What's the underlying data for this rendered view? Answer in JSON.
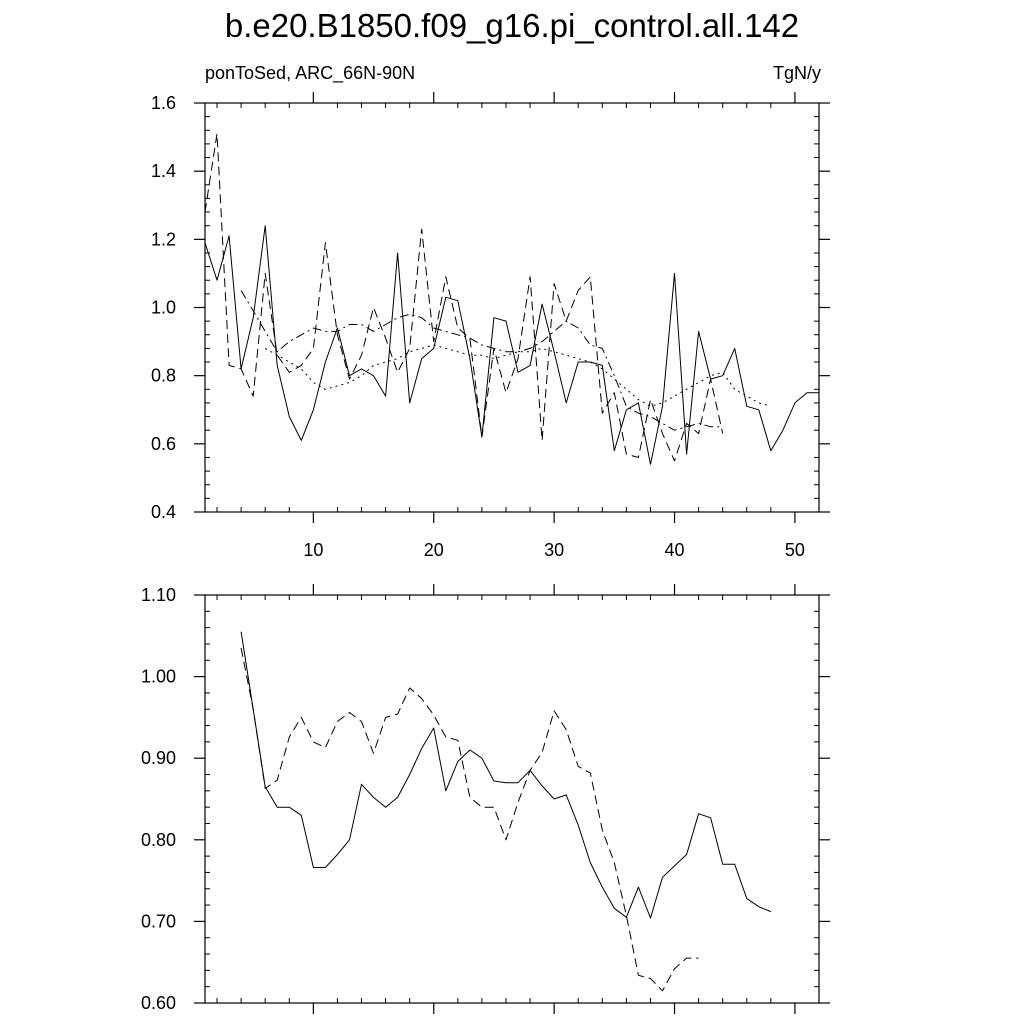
{
  "page": {
    "title": "b.e20.B1850.f09_g16.pi_control.all.142",
    "left_label": "ponToSed, ARC_66N-90N",
    "right_label": "TgN/y"
  },
  "chart_data": [
    {
      "type": "line",
      "title": "",
      "xlabel": "",
      "ylabel": "",
      "xlim": [
        1,
        52
      ],
      "ylim": [
        0.4,
        1.6
      ],
      "xticks": [
        10,
        20,
        30,
        40,
        50
      ],
      "yticks": [
        0.4,
        0.6,
        0.8,
        1.0,
        1.2,
        1.4,
        1.6
      ],
      "ytick_labels": [
        "0.4",
        "0.6",
        "0.8",
        "1.0",
        "1.2",
        "1.4",
        "1.6"
      ],
      "show_xtick_labels": true,
      "grid": false,
      "series": [
        {
          "style": "solid",
          "x": [
            1,
            2,
            3,
            4,
            5,
            6,
            7,
            8,
            9,
            10,
            11,
            12,
            13,
            14,
            15,
            16,
            17,
            18,
            19,
            20,
            21,
            22,
            23,
            24,
            25,
            26,
            27,
            28,
            29,
            30,
            31,
            32,
            33,
            34,
            35,
            36,
            37,
            38,
            39,
            40,
            41,
            42,
            43,
            44,
            45,
            46,
            47,
            48,
            49,
            50,
            51,
            52
          ],
          "y": [
            1.19,
            1.08,
            1.21,
            0.82,
            0.97,
            1.24,
            0.83,
            0.68,
            0.61,
            0.7,
            0.84,
            0.94,
            0.8,
            0.82,
            0.8,
            0.74,
            1.16,
            0.72,
            0.85,
            0.88,
            1.03,
            1.02,
            0.85,
            0.62,
            0.97,
            0.96,
            0.81,
            0.83,
            1.01,
            0.87,
            0.72,
            0.84,
            0.84,
            0.83,
            0.58,
            0.7,
            0.72,
            0.54,
            0.71,
            1.1,
            0.57,
            0.93,
            0.79,
            0.8,
            0.88,
            0.71,
            0.7,
            0.58,
            0.64,
            0.72,
            0.75,
            0.75
          ]
        },
        {
          "style": "dash",
          "x": [
            1,
            2,
            3,
            4,
            5,
            6,
            7,
            8,
            9,
            10,
            11,
            12,
            13,
            14,
            15,
            16,
            17,
            18,
            19,
            20,
            21,
            22,
            23,
            24,
            25,
            26,
            27,
            28,
            29,
            30,
            31,
            32,
            33,
            34,
            35,
            36,
            37,
            38,
            39,
            40,
            41,
            42,
            43,
            44
          ],
          "y": [
            1.28,
            1.51,
            0.83,
            0.82,
            0.74,
            1.1,
            0.86,
            0.81,
            0.83,
            0.88,
            1.19,
            0.92,
            0.79,
            0.86,
            1.0,
            0.91,
            0.81,
            0.88,
            1.23,
            0.9,
            1.09,
            0.94,
            0.91,
            0.62,
            0.88,
            0.75,
            0.85,
            1.09,
            0.61,
            1.07,
            0.96,
            1.05,
            1.09,
            0.69,
            0.75,
            0.57,
            0.56,
            0.73,
            0.63,
            0.55,
            0.66,
            0.63,
            0.79,
            0.63
          ]
        },
        {
          "style": "dashdot",
          "x": [
            4,
            5,
            6,
            7,
            8,
            9,
            10,
            11,
            12,
            13,
            14,
            15,
            16,
            17,
            18,
            19,
            20,
            21,
            22,
            23,
            24,
            25,
            26,
            27,
            28,
            29,
            30,
            31,
            32,
            33,
            34,
            35,
            36,
            37,
            38,
            39,
            40,
            41,
            42,
            43,
            44
          ],
          "y": [
            1.05,
            0.99,
            0.93,
            0.87,
            0.9,
            0.92,
            0.94,
            0.93,
            0.93,
            0.95,
            0.95,
            0.93,
            0.95,
            0.97,
            0.98,
            0.97,
            0.94,
            0.93,
            0.92,
            0.91,
            0.89,
            0.88,
            0.87,
            0.87,
            0.88,
            0.9,
            0.93,
            0.96,
            0.94,
            0.89,
            0.88,
            0.8,
            0.71,
            0.69,
            0.68,
            0.66,
            0.64,
            0.65,
            0.66,
            0.65,
            0.65
          ]
        },
        {
          "style": "dot",
          "x": [
            6,
            7,
            8,
            9,
            10,
            11,
            12,
            13,
            14,
            15,
            16,
            17,
            18,
            19,
            20,
            21,
            22,
            23,
            24,
            25,
            26,
            27,
            28,
            29,
            30,
            31,
            32,
            33,
            34,
            35,
            36,
            37,
            38,
            39,
            40,
            41,
            42,
            43,
            44,
            45,
            46,
            47,
            48
          ],
          "y": [
            0.88,
            0.86,
            0.84,
            0.82,
            0.78,
            0.76,
            0.77,
            0.78,
            0.8,
            0.83,
            0.84,
            0.85,
            0.87,
            0.88,
            0.89,
            0.88,
            0.87,
            0.86,
            0.86,
            0.85,
            0.86,
            0.87,
            0.87,
            0.88,
            0.87,
            0.86,
            0.85,
            0.84,
            0.82,
            0.79,
            0.76,
            0.73,
            0.71,
            0.72,
            0.74,
            0.76,
            0.78,
            0.8,
            0.81,
            0.76,
            0.74,
            0.72,
            0.71
          ]
        }
      ]
    },
    {
      "type": "line",
      "title": "",
      "xlabel": "",
      "ylabel": "",
      "xlim": [
        1,
        52
      ],
      "ylim": [
        0.6,
        1.1
      ],
      "xticks": [
        10,
        20,
        30,
        40,
        50
      ],
      "yticks": [
        0.6,
        0.7,
        0.8,
        0.9,
        1.0,
        1.1
      ],
      "ytick_labels": [
        "0.60",
        "0.70",
        "0.80",
        "0.90",
        "1.00",
        "1.10"
      ],
      "show_xtick_labels": false,
      "grid": false,
      "series": [
        {
          "style": "solid",
          "x": [
            4,
            5,
            6,
            7,
            8,
            9,
            10,
            11,
            12,
            13,
            14,
            15,
            16,
            17,
            18,
            19,
            20,
            21,
            22,
            23,
            24,
            25,
            26,
            27,
            28,
            29,
            30,
            31,
            32,
            33,
            34,
            35,
            36,
            37,
            38,
            39,
            40,
            41,
            42,
            43,
            44,
            45,
            46,
            47,
            48
          ],
          "y": [
            1.055,
            0.96,
            0.865,
            0.84,
            0.84,
            0.83,
            0.766,
            0.766,
            0.782,
            0.8,
            0.868,
            0.852,
            0.84,
            0.852,
            0.88,
            0.912,
            0.937,
            0.86,
            0.896,
            0.91,
            0.9,
            0.872,
            0.87,
            0.87,
            0.885,
            0.866,
            0.85,
            0.855,
            0.818,
            0.772,
            0.742,
            0.716,
            0.705,
            0.742,
            0.704,
            0.754,
            0.768,
            0.782,
            0.832,
            0.827,
            0.77,
            0.77,
            0.728,
            0.718,
            0.712
          ]
        },
        {
          "style": "dash",
          "x": [
            4,
            5,
            6,
            7,
            8,
            9,
            10,
            11,
            12,
            13,
            14,
            15,
            16,
            17,
            18,
            19,
            20,
            21,
            22,
            23,
            24,
            25,
            26,
            27,
            28,
            29,
            30,
            31,
            32,
            33,
            34,
            35,
            36,
            37,
            38,
            39,
            40,
            41,
            42
          ],
          "y": [
            1.035,
            0.96,
            0.863,
            0.873,
            0.926,
            0.95,
            0.92,
            0.913,
            0.945,
            0.956,
            0.945,
            0.906,
            0.95,
            0.954,
            0.986,
            0.973,
            0.953,
            0.926,
            0.922,
            0.852,
            0.84,
            0.84,
            0.8,
            0.846,
            0.885,
            0.907,
            0.958,
            0.935,
            0.89,
            0.882,
            0.812,
            0.772,
            0.707,
            0.634,
            0.63,
            0.615,
            0.642,
            0.655,
            0.655
          ]
        }
      ]
    }
  ]
}
